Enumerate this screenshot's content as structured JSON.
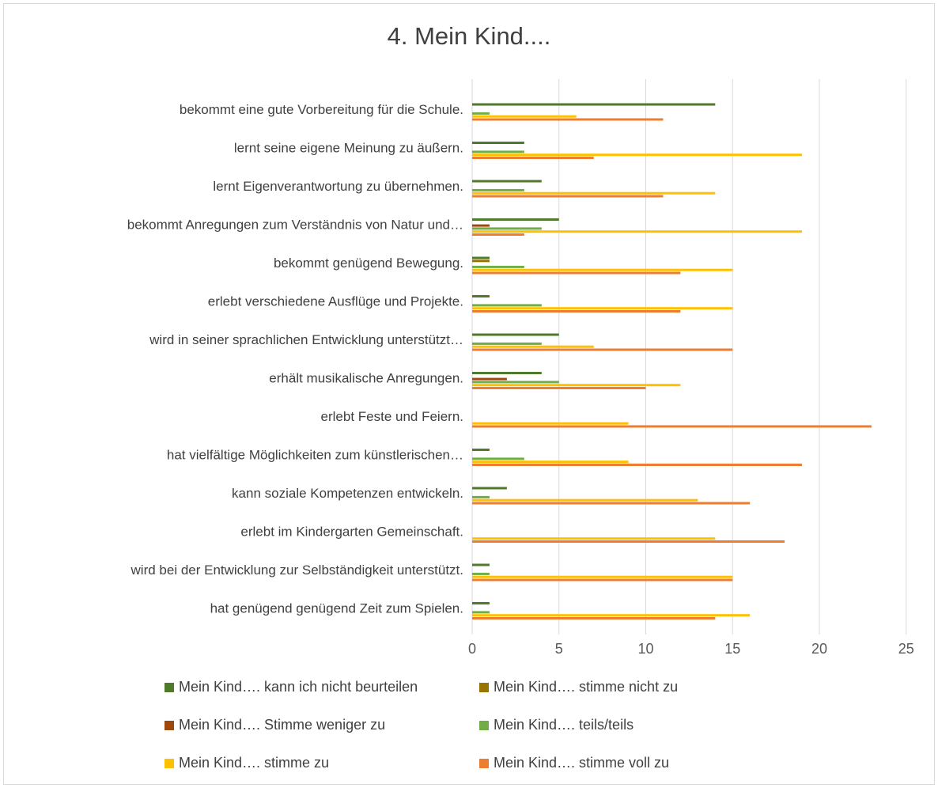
{
  "chart_data": {
    "type": "bar",
    "orientation": "horizontal",
    "title": "4. Mein Kind....",
    "categories": [
      "bekommt eine gute Vorbereitung für die Schule.",
      "lernt seine eigene Meinung zu äußern.",
      "lernt Eigenverantwortung zu übernehmen.",
      "bekommt Anregungen zum Verständnis von Natur und…",
      "bekommt genügend Bewegung.",
      "erlebt verschiedene Ausflüge und Projekte.",
      "wird in seiner sprachlichen Entwicklung unterstützt…",
      "erhält musikalische Anregungen.",
      "erlebt Feste und Feiern.",
      "hat vielfältige Möglichkeiten zum künstlerischen…",
      "kann soziale Kompetenzen entwickeln.",
      "erlebt im Kindergarten Gemeinschaft.",
      "wird bei der Entwicklung zur Selbständigkeit unterstützt.",
      "hat genügend genügend Zeit zum Spielen."
    ],
    "series": [
      {
        "name": "Mein Kind…. kann ich nicht beurteilen",
        "color": "#4f7a2b",
        "values": [
          14,
          3,
          4,
          5,
          1,
          1,
          5,
          4,
          0,
          1,
          2,
          0,
          1,
          1
        ]
      },
      {
        "name": "Mein Kind…. stimme nicht zu",
        "color": "#997300",
        "values": [
          0,
          0,
          0,
          0,
          1,
          0,
          0,
          0,
          0,
          0,
          0,
          0,
          0,
          0
        ]
      },
      {
        "name": "Mein Kind…. Stimme weniger zu",
        "color": "#9e480e",
        "values": [
          0,
          0,
          0,
          1,
          0,
          0,
          0,
          2,
          0,
          0,
          0,
          0,
          0,
          0
        ]
      },
      {
        "name": "Mein Kind…. teils/teils",
        "color": "#70ad47",
        "values": [
          1,
          3,
          3,
          4,
          3,
          4,
          4,
          5,
          0,
          3,
          1,
          0,
          1,
          1
        ]
      },
      {
        "name": "Mein Kind…. stimme zu",
        "color": "#ffc000",
        "values": [
          6,
          19,
          14,
          19,
          15,
          15,
          7,
          12,
          9,
          9,
          13,
          14,
          15,
          16
        ]
      },
      {
        "name": "Mein Kind…. stimme voll zu",
        "color": "#ed7d31",
        "values": [
          11,
          7,
          11,
          3,
          12,
          12,
          15,
          10,
          23,
          19,
          16,
          18,
          15,
          14
        ]
      }
    ],
    "xlim": [
      0,
      25
    ],
    "xticks": [
      0,
      5,
      10,
      15,
      20,
      25
    ],
    "grid": true,
    "legend_position": "bottom"
  }
}
